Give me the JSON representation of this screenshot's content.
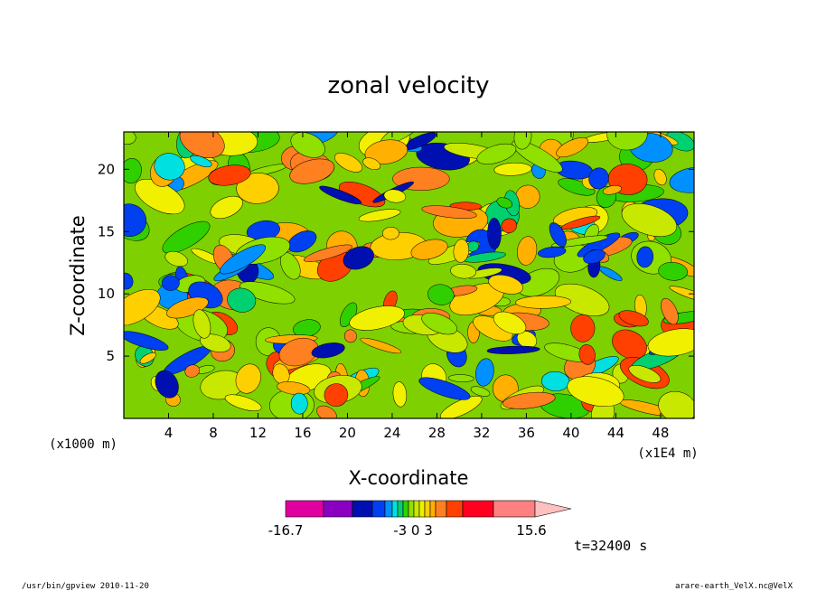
{
  "chart_data": {
    "type": "heatmap",
    "title": "zonal velocity",
    "xlabel": "X-coordinate",
    "ylabel": "Z-coordinate",
    "x_unit_label": "(x1E4 m)",
    "y_unit_label": "(x1000 m)",
    "xlim": [
      0,
      51
    ],
    "ylim": [
      0,
      23
    ],
    "x_ticks": [
      4,
      8,
      12,
      16,
      20,
      24,
      28,
      32,
      36,
      40,
      44,
      48
    ],
    "y_ticks": [
      5,
      10,
      15,
      20
    ],
    "colorbar": {
      "levels": [
        -16.7,
        -12,
        -9,
        -6,
        -4.5,
        -3,
        -2.25,
        -1.5,
        -0.75,
        0,
        0.75,
        1.5,
        2.25,
        3,
        6,
        9,
        12,
        15.6
      ],
      "labels": [
        "-16.7",
        "-3 0 3",
        "15.6"
      ],
      "colors": [
        "#e000a0",
        "#8a00c0",
        "#0010b0",
        "#0040f0",
        "#0090ff",
        "#00e0e0",
        "#00d070",
        "#30d000",
        "#90e000",
        "#c8e800",
        "#f0f000",
        "#ffd000",
        "#ffb000",
        "#ff8020",
        "#ff4000",
        "#ff0020",
        "#ff8080",
        "#ffc0c0"
      ]
    },
    "grid": false
  },
  "time_label": "t=32400 s",
  "footer_left": "/usr/bin/gpview   2010-11-20",
  "footer_right": "arare-earth_VelX.nc@VelX"
}
